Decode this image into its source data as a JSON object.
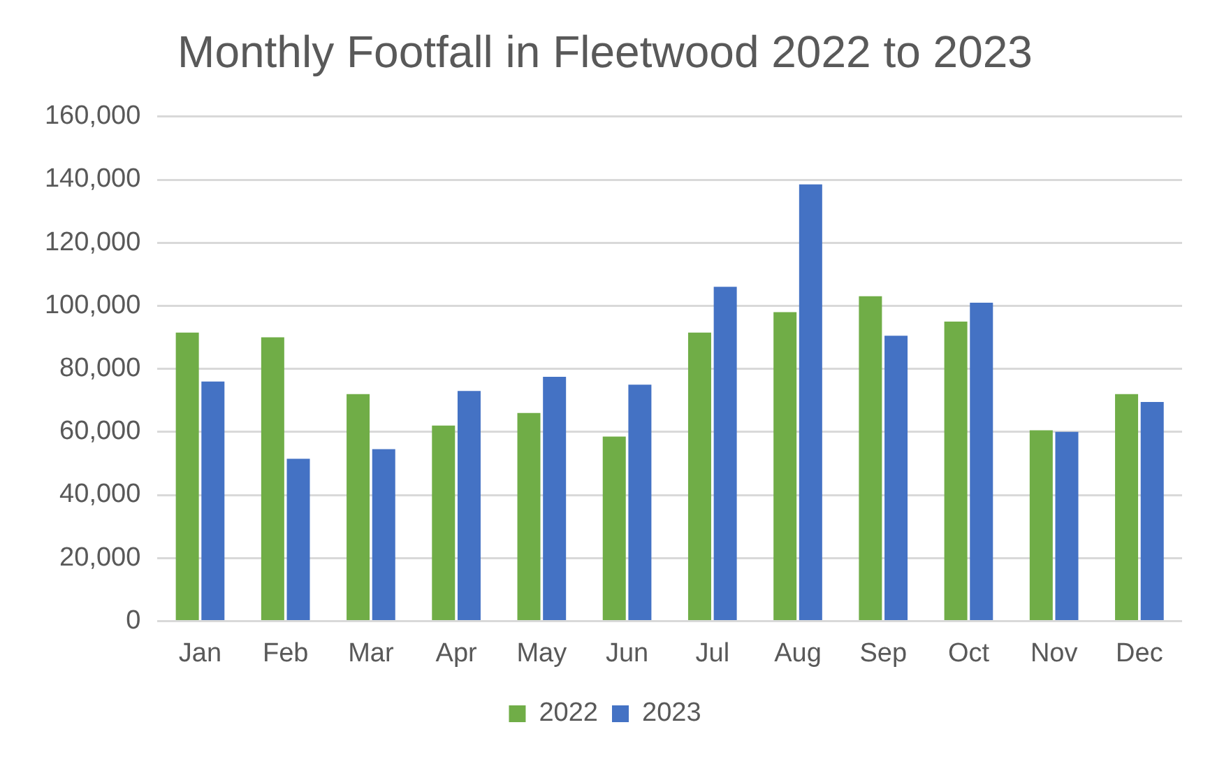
{
  "chart_data": {
    "type": "bar",
    "title": "Monthly Footfall in Fleetwood 2022 to 2023",
    "categories": [
      "Jan",
      "Feb",
      "Mar",
      "Apr",
      "May",
      "Jun",
      "Jul",
      "Aug",
      "Sep",
      "Oct",
      "Nov",
      "Dec"
    ],
    "series": [
      {
        "name": "2022",
        "color": "#70ad47",
        "values": [
          91500,
          90000,
          72000,
          62000,
          66000,
          58500,
          91500,
          98000,
          103000,
          95000,
          60500,
          72000
        ]
      },
      {
        "name": "2023",
        "color": "#4472c4",
        "values": [
          76000,
          51500,
          54500,
          73000,
          77500,
          75000,
          106000,
          138500,
          90500,
          101000,
          60000,
          69500
        ]
      }
    ],
    "ylim": [
      0,
      160000
    ],
    "yticks": [
      {
        "value": 0,
        "label": "0"
      },
      {
        "value": 20000,
        "label": "20,000"
      },
      {
        "value": 40000,
        "label": "40,000"
      },
      {
        "value": 60000,
        "label": "60,000"
      },
      {
        "value": 80000,
        "label": "80,000"
      },
      {
        "value": 100000,
        "label": "100,000"
      },
      {
        "value": 120000,
        "label": "120,000"
      },
      {
        "value": 140000,
        "label": "140,000"
      },
      {
        "value": 160000,
        "label": "160,000"
      }
    ],
    "grid": "y",
    "legend": "bottom"
  }
}
